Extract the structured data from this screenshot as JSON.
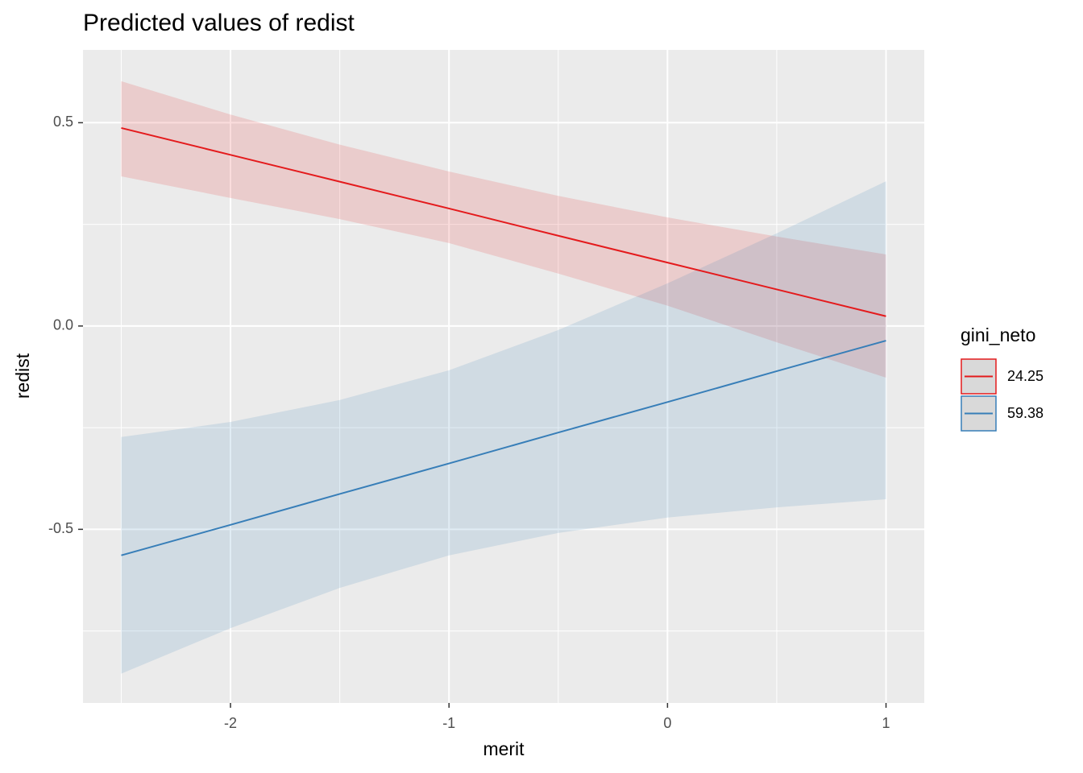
{
  "chart_data": {
    "type": "line",
    "title": "Predicted values of redist",
    "x_label": "merit",
    "y_label": "redist",
    "legend_title": "gini_neto",
    "legend_position": "right",
    "grid": true,
    "x": [
      -2.5,
      -2,
      -1.5,
      -1,
      -0.5,
      0,
      0.5,
      1
    ],
    "series": [
      {
        "name": "24.25",
        "color": "#E41A1C",
        "values": [
          0.487,
          0.421,
          0.355,
          0.289,
          0.222,
          0.156,
          0.09,
          0.024
        ],
        "lower": [
          0.368,
          0.315,
          0.263,
          0.204,
          0.129,
          0.05,
          -0.04,
          -0.127
        ],
        "upper": [
          0.602,
          0.52,
          0.446,
          0.38,
          0.32,
          0.267,
          0.22,
          0.176
        ]
      },
      {
        "name": "59.38",
        "color": "#377EB8",
        "values": [
          -0.564,
          -0.489,
          -0.413,
          -0.338,
          -0.262,
          -0.187,
          -0.111,
          -0.036
        ],
        "lower": [
          -0.855,
          -0.743,
          -0.644,
          -0.564,
          -0.509,
          -0.471,
          -0.446,
          -0.426
        ],
        "upper": [
          -0.273,
          -0.236,
          -0.182,
          -0.109,
          -0.01,
          0.105,
          0.228,
          0.356
        ]
      }
    ],
    "xlim": [
      -2.675,
      1.175
    ],
    "ylim": [
      -0.927,
      0.679
    ],
    "xticks": [
      -2,
      -1,
      0,
      1
    ],
    "yticks": [
      {
        "value": 0.5,
        "label": "0.5"
      },
      {
        "value": 0,
        "label": "0.0"
      },
      {
        "value": -0.5,
        "label": "-0.5"
      }
    ],
    "xminor_ticks": [
      -2.5,
      -1.5,
      -0.5,
      0.5
    ],
    "yminor_ticks": [
      0.25,
      -0.25,
      -0.75
    ]
  }
}
